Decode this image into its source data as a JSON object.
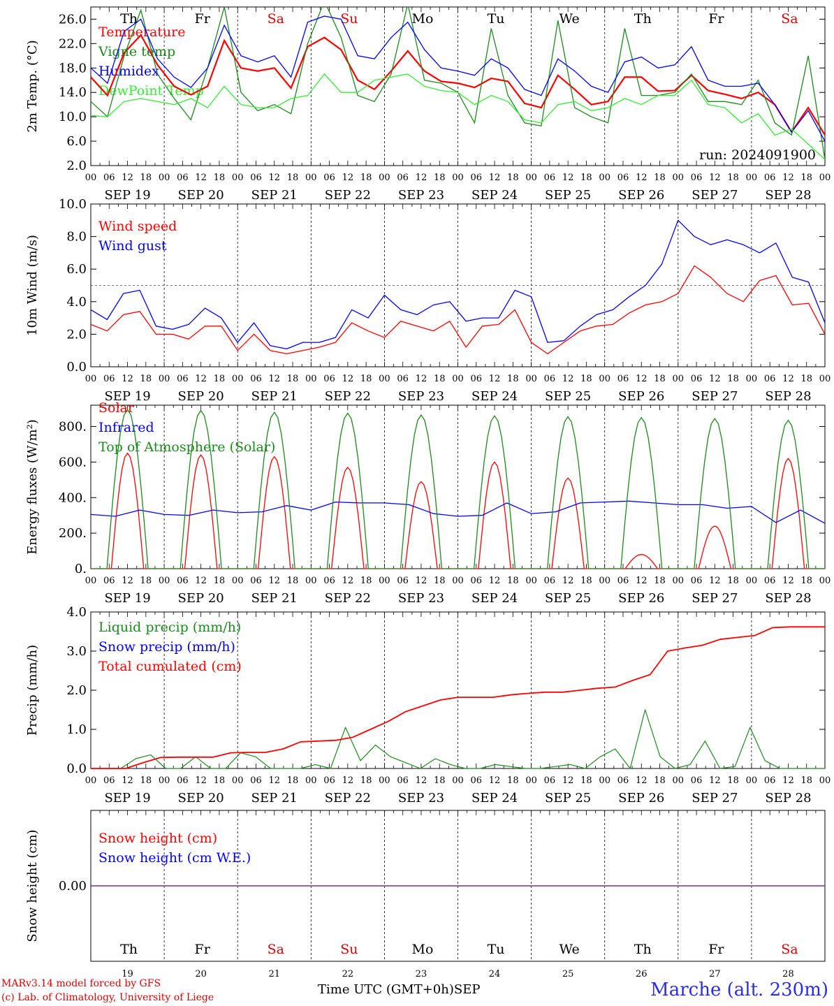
{
  "chart_data": [
    {
      "type": "line",
      "ylabel": "2m Temp. (°C)",
      "ylim": [
        2,
        28
      ],
      "yticks": [
        "2.0",
        "6.0",
        "10.0",
        "14.0",
        "18.0",
        "22.0",
        "26.0"
      ],
      "run_label": "run: 2024091900",
      "series": [
        {
          "name": "Temperature",
          "color": "#ff0000",
          "values": [
            16.5,
            13.5,
            20.5,
            23.4,
            18.5,
            15.0,
            13.6,
            15.0,
            22.5,
            18.0,
            17.5,
            18.0,
            14.7,
            21.5,
            23.0,
            21.0,
            16.0,
            14.5,
            17.5,
            20.8,
            17.5,
            15.8,
            15.5,
            14.8,
            16.3,
            15.8,
            12.2,
            11.5,
            16.8,
            14.5,
            12.0,
            12.5,
            16.5,
            16.5,
            14.2,
            14.3,
            16.8,
            14.3,
            13.7,
            13.0,
            14.0,
            12.0,
            7.5,
            11.5,
            7.0
          ]
        },
        {
          "name": "Vigne temp",
          "color": "#1a8a1a",
          "values": [
            12.5,
            10.0,
            20.0,
            27.5,
            17.0,
            13.0,
            9.5,
            18.0,
            28.0,
            14.0,
            11.0,
            12.0,
            10.5,
            22.0,
            29.0,
            23.0,
            13.5,
            12.5,
            17.0,
            28.5,
            16.0,
            15.5,
            14.0,
            9.0,
            24.5,
            13.5,
            9.0,
            8.5,
            25.8,
            11.5,
            10.0,
            9.0,
            24.5,
            13.5,
            13.5,
            14.0,
            17.0,
            12.5,
            12.5,
            12.0,
            16.0,
            9.0,
            7.0,
            20.0,
            3.0
          ]
        },
        {
          "name": "Humidex",
          "color": "#0000ff",
          "values": [
            18.0,
            15.5,
            24.0,
            26.0,
            19.5,
            16.5,
            14.8,
            18.0,
            25.0,
            20.0,
            19.0,
            20.0,
            16.5,
            25.5,
            26.5,
            26.0,
            20.0,
            19.5,
            23.0,
            25.5,
            21.0,
            18.0,
            17.5,
            16.8,
            19.5,
            18.0,
            14.5,
            13.5,
            19.5,
            17.5,
            15.0,
            14.0,
            19.0,
            19.8,
            18.0,
            18.5,
            21.5,
            16.0,
            15.0,
            15.0,
            15.5,
            12.0,
            7.5,
            11.0,
            6.0
          ]
        },
        {
          "name": "DewPoint Temp",
          "color": "#33ee33",
          "values": [
            10.2,
            10.0,
            12.5,
            13.0,
            12.5,
            12.0,
            13.0,
            11.5,
            15.0,
            12.0,
            11.5,
            11.5,
            13.0,
            13.5,
            17.0,
            14.0,
            14.0,
            16.0,
            16.5,
            17.0,
            15.0,
            14.3,
            14.0,
            12.0,
            13.5,
            12.5,
            9.5,
            9.0,
            12.0,
            12.5,
            11.0,
            11.5,
            13.0,
            12.0,
            13.5,
            13.5,
            16.0,
            12.0,
            11.5,
            9.0,
            10.5,
            7.0,
            8.0,
            5.5,
            3.0
          ]
        }
      ]
    },
    {
      "type": "line",
      "ylabel": "10m Wind (m/s)",
      "ylim": [
        0,
        10
      ],
      "yticks": [
        "0.0",
        "2.0",
        "4.0",
        "6.0",
        "8.0",
        "10.0"
      ],
      "dashed_threshold": 5,
      "series": [
        {
          "name": "Wind speed",
          "color": "#ff0000",
          "values": [
            2.6,
            2.2,
            3.2,
            3.4,
            2.0,
            2.0,
            1.7,
            2.5,
            2.5,
            1.0,
            2.0,
            1.0,
            0.8,
            1.0,
            1.2,
            1.5,
            2.7,
            2.2,
            1.8,
            2.8,
            2.5,
            2.2,
            2.8,
            1.2,
            2.5,
            2.6,
            3.5,
            1.5,
            0.8,
            1.5,
            2.2,
            2.5,
            2.6,
            3.3,
            3.8,
            4.0,
            4.5,
            6.2,
            5.5,
            4.5,
            4.0,
            5.3,
            5.6,
            3.8,
            3.9,
            2.0
          ]
        },
        {
          "name": "Wind gust",
          "color": "#0000ff",
          "values": [
            3.5,
            2.9,
            4.5,
            4.7,
            2.5,
            2.3,
            2.6,
            3.6,
            3.0,
            1.5,
            2.7,
            1.3,
            1.1,
            1.5,
            1.5,
            1.8,
            3.5,
            3.0,
            4.4,
            3.5,
            3.2,
            3.8,
            4.0,
            2.8,
            3.0,
            3.0,
            4.7,
            4.3,
            1.5,
            1.6,
            2.5,
            3.2,
            3.5,
            4.3,
            5.0,
            6.3,
            9.0,
            8.0,
            7.5,
            7.8,
            7.5,
            7.0,
            7.6,
            5.5,
            5.2,
            2.7
          ]
        }
      ]
    },
    {
      "type": "line",
      "ylabel": "Energy fluxes (W/m²)",
      "ylim": [
        0,
        920
      ],
      "yticks": [
        "0.",
        "200.",
        "400.",
        "600.",
        "800."
      ],
      "series": [
        {
          "name": "Solar",
          "color": "#ff0000",
          "peaks": [
            650,
            640,
            630,
            570,
            490,
            600,
            510,
            80,
            240,
            620
          ]
        },
        {
          "name": "Infrared",
          "color": "#0000ff",
          "values": [
            305,
            295,
            330,
            305,
            300,
            330,
            315,
            320,
            355,
            330,
            375,
            370,
            370,
            360,
            310,
            295,
            300,
            370,
            310,
            320,
            370,
            375,
            380,
            370,
            360,
            360,
            340,
            350,
            260,
            330,
            255
          ]
        },
        {
          "name": "Top of Atmosphere (Solar)",
          "color": "#1a8a1a",
          "peaks": [
            895,
            890,
            880,
            875,
            865,
            860,
            855,
            850,
            845,
            835
          ]
        }
      ]
    },
    {
      "type": "line",
      "ylabel": "Precip (mm/h)",
      "ylim": [
        0,
        4
      ],
      "yticks": [
        "0.0",
        "1.0",
        "2.0",
        "3.0",
        "4.0"
      ],
      "series": [
        {
          "name": "Liquid precip (mm/h)",
          "color": "#1a8a1a",
          "values": [
            0,
            0,
            0,
            0.25,
            0.35,
            0,
            0,
            0.3,
            0,
            0,
            0.4,
            0.3,
            0,
            0,
            0,
            0.1,
            0,
            1.05,
            0.2,
            0.6,
            0.3,
            0.15,
            0,
            0.25,
            0.1,
            0,
            0,
            0.1,
            0.05,
            0,
            0,
            0.05,
            0.1,
            0,
            0.3,
            0.5,
            0,
            1.5,
            0.3,
            0,
            0.1,
            0.7,
            0,
            0.05,
            1.05,
            0.2,
            0,
            0,
            0,
            0
          ]
        },
        {
          "name": "Snow precip (mm/h)",
          "color": "#0000ff",
          "values": []
        },
        {
          "name": "Total cumulated (cm)",
          "color": "#ff0000",
          "values": [
            0,
            0,
            0,
            0.15,
            0.28,
            0.29,
            0.29,
            0.29,
            0.4,
            0.41,
            0.41,
            0.5,
            0.68,
            0.7,
            0.72,
            0.8,
            1.0,
            1.2,
            1.45,
            1.6,
            1.75,
            1.82,
            1.82,
            1.82,
            1.88,
            1.92,
            1.95,
            1.95,
            2.0,
            2.05,
            2.08,
            2.25,
            2.4,
            3.0,
            3.08,
            3.15,
            3.3,
            3.35,
            3.4,
            3.6,
            3.62,
            3.62,
            3.62
          ]
        }
      ]
    },
    {
      "type": "line",
      "ylabel": "Snow height (cm)",
      "yticks": [
        "0.00"
      ],
      "series": [
        {
          "name": "Snow height (cm)",
          "color": "#ff0000",
          "values": [
            0,
            0
          ]
        },
        {
          "name": "Snow height (cm W.E.)",
          "color": "#0000ff",
          "values": [
            0,
            0
          ]
        }
      ]
    }
  ],
  "days": [
    {
      "label": "Th",
      "date": "SEP 19",
      "num": "19",
      "color": "#000000"
    },
    {
      "label": "Fr",
      "date": "SEP 20",
      "num": "20",
      "color": "#000000"
    },
    {
      "label": "Sa",
      "date": "SEP 21",
      "num": "21",
      "color": "#e00000"
    },
    {
      "label": "Su",
      "date": "SEP 22",
      "num": "22",
      "color": "#e00000"
    },
    {
      "label": "Mo",
      "date": "SEP 23",
      "num": "23",
      "color": "#000000"
    },
    {
      "label": "Tu",
      "date": "SEP 24",
      "num": "24",
      "color": "#000000"
    },
    {
      "label": "We",
      "date": "SEP 25",
      "num": "25",
      "color": "#000000"
    },
    {
      "label": "Th",
      "date": "SEP 26",
      "num": "26",
      "color": "#000000"
    },
    {
      "label": "Fr",
      "date": "SEP 27",
      "num": "27",
      "color": "#000000"
    },
    {
      "label": "Sa",
      "date": "SEP 28",
      "num": "28",
      "color": "#e00000"
    }
  ],
  "hour_ticks": [
    "00",
    "06",
    "12",
    "18"
  ],
  "hour_end": "00",
  "footer": {
    "model": "MARv3.14 model forced by GFS",
    "credit": "(c) Lab. of Climatology, University of Liege",
    "xlabel": "Time UTC (GMT+0h)",
    "month": "SEP",
    "station": "Marche (alt. 230m)"
  }
}
